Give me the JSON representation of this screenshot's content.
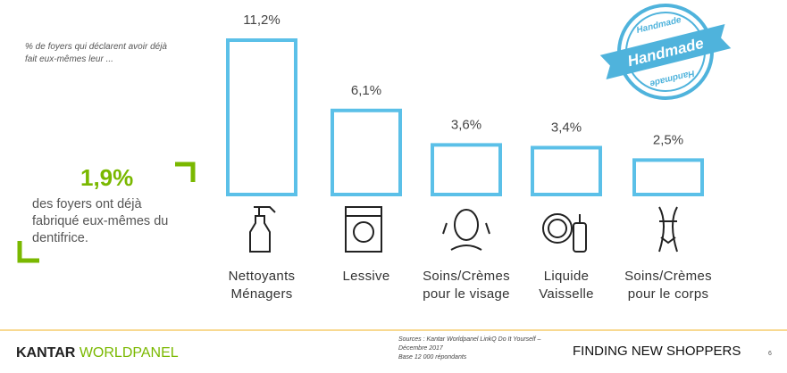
{
  "chart_data": {
    "type": "bar",
    "subtitle": "% de foyers qui déclarent avoir déjà fait eux-mêmes leur ...",
    "categories": [
      "Nettoyants Ménagers",
      "Lessive",
      "Soins/Crèmes pour le visage",
      "Liquide Vaisselle",
      "Soins/Crèmes pour le corps"
    ],
    "values": [
      11.2,
      6.1,
      3.6,
      3.4,
      2.5
    ],
    "value_labels": [
      "11,2%",
      "6,1%",
      "3,6%",
      "3,4%",
      "2,5%"
    ],
    "color": "#5bc0e8"
  },
  "callout": {
    "figure": "1,9%",
    "text": "des foyers ont déjà fabriqué eux-mêmes du dentifrice."
  },
  "stamp": {
    "top": "Handmade",
    "center": "Handmade",
    "bottom": "Handmade"
  },
  "footer": {
    "brand_left": "KANTAR ",
    "brand_right": "WORLDPANEL",
    "sources": "Sources : Kantar Worldpanel LinkQ Do It Yourself – Décembre 2017",
    "base": "Base 12 000 répondants",
    "tagline": "FINDING NEW SHOPPERS",
    "page": "6"
  }
}
